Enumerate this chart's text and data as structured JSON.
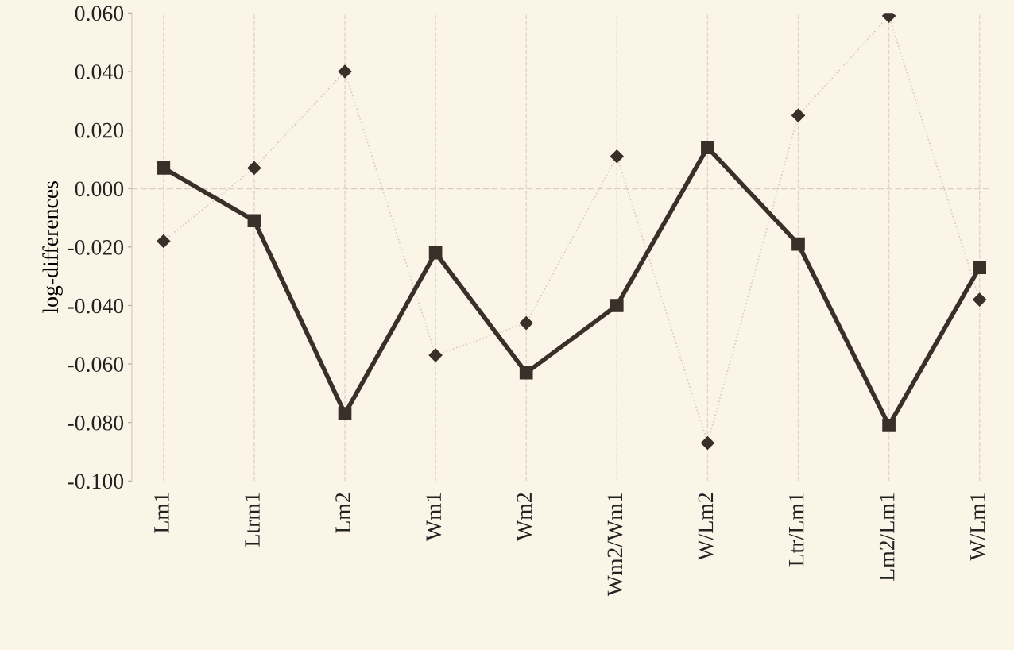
{
  "chart_data": {
    "type": "line",
    "ylabel": "log-differences",
    "categories": [
      "Lm1",
      "Ltrm1",
      "Lm2",
      "Wm1",
      "Wm2",
      "Wm2/Wm1",
      "W/Lm2",
      "Ltr/Lm1",
      "Lm2/Lm1",
      "W/Lm1"
    ],
    "series": [
      {
        "color": "#3a302a",
        "marker": "diamond",
        "line_style": "dotted",
        "values": [
          -0.018,
          0.007,
          0.04,
          -0.057,
          -0.046,
          0.011,
          -0.087,
          0.025,
          0.059,
          -0.038
        ]
      },
      {
        "color": "#3a302a",
        "marker": "square",
        "line_style": "solid",
        "values": [
          0.007,
          -0.011,
          -0.077,
          -0.022,
          -0.063,
          -0.04,
          0.014,
          -0.019,
          -0.081,
          -0.027
        ]
      }
    ],
    "ylim": [
      -0.1,
      0.06
    ],
    "yticks": [
      {
        "value": -0.1,
        "label": "-0.100"
      },
      {
        "value": -0.08,
        "label": "-0.080"
      },
      {
        "value": -0.06,
        "label": "-0.060"
      },
      {
        "value": -0.04,
        "label": "-0.040"
      },
      {
        "value": -0.02,
        "label": "-0.020"
      },
      {
        "value": 0,
        "label": "0.000"
      },
      {
        "value": 0.02,
        "label": "0.020"
      },
      {
        "value": 0.04,
        "label": "0.040"
      },
      {
        "value": 0.06,
        "label": "0.060"
      }
    ],
    "ref_lines": [
      {
        "axis": "y",
        "value": 0,
        "color": "#d9d1c3",
        "line_style": "dashed"
      }
    ],
    "grid": "x",
    "legend": false
  }
}
